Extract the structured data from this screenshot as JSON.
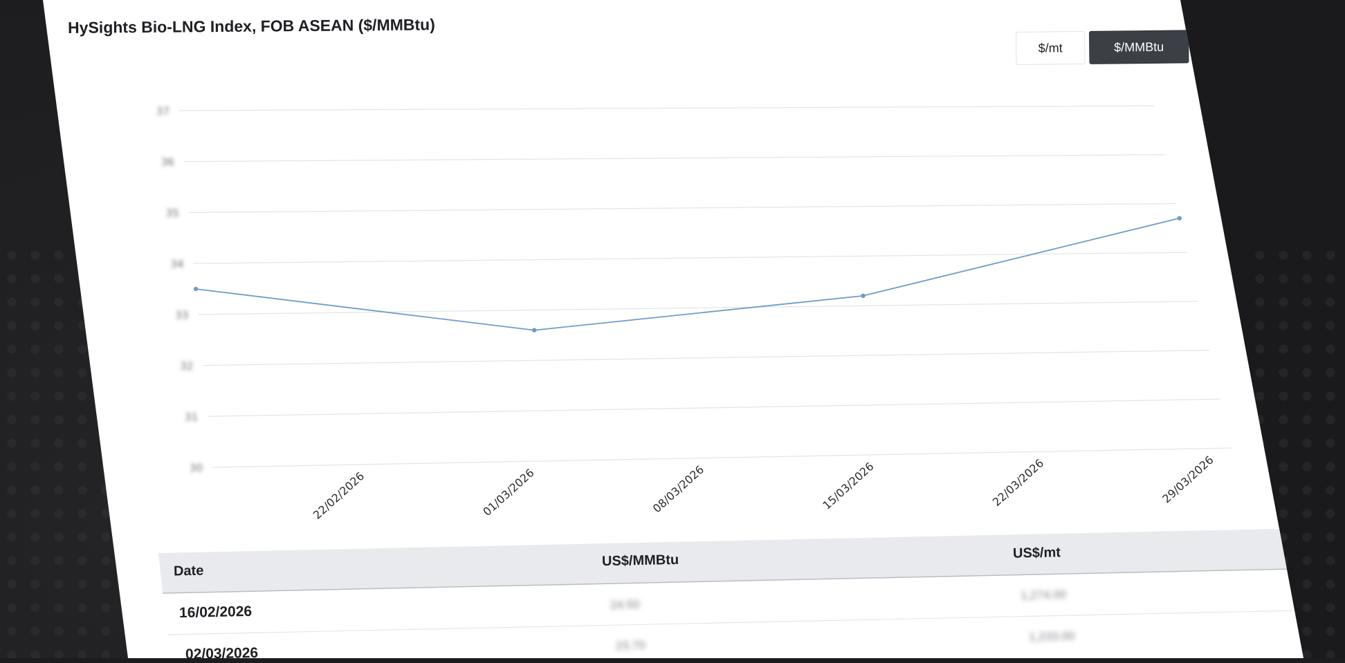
{
  "title": "HySights Bio-LNG Index, FOB ASEAN ($/MMBtu)",
  "unit_toggle": {
    "options": [
      "$/mt",
      "$/MMBtu"
    ],
    "selected": "$/MMBtu"
  },
  "colors": {
    "line": "#6f9bc8",
    "grid": "#e4e6ea",
    "toggle_active_bg": "#3c3f46",
    "table_header_bg": "#e8eaee"
  },
  "chart_data": {
    "type": "line",
    "title": "HySights Bio-LNG Index, FOB ASEAN ($/MMBtu)",
    "xlabel": "",
    "ylabel": "",
    "y_ticks_visible": false,
    "ylim": [
      30,
      37
    ],
    "x_tick_labels": [
      "22/02/2026",
      "01/03/2026",
      "08/03/2026",
      "15/03/2026",
      "22/03/2026",
      "29/03/2026"
    ],
    "x": [
      "16/02/2026",
      "02/03/2026",
      "16/03/2026",
      "30/03/2026"
    ],
    "values": [
      33.5,
      32.6,
      33.2,
      34.7
    ],
    "grid": true,
    "legend": "none"
  },
  "table": {
    "headers": [
      "Date",
      "US$/MMBtu",
      "US$/mt"
    ],
    "rows": [
      {
        "date": "16/02/2026",
        "mmbtu": "",
        "mt": ""
      },
      {
        "date": "02/03/2026",
        "mmbtu": "",
        "mt": ""
      }
    ]
  }
}
